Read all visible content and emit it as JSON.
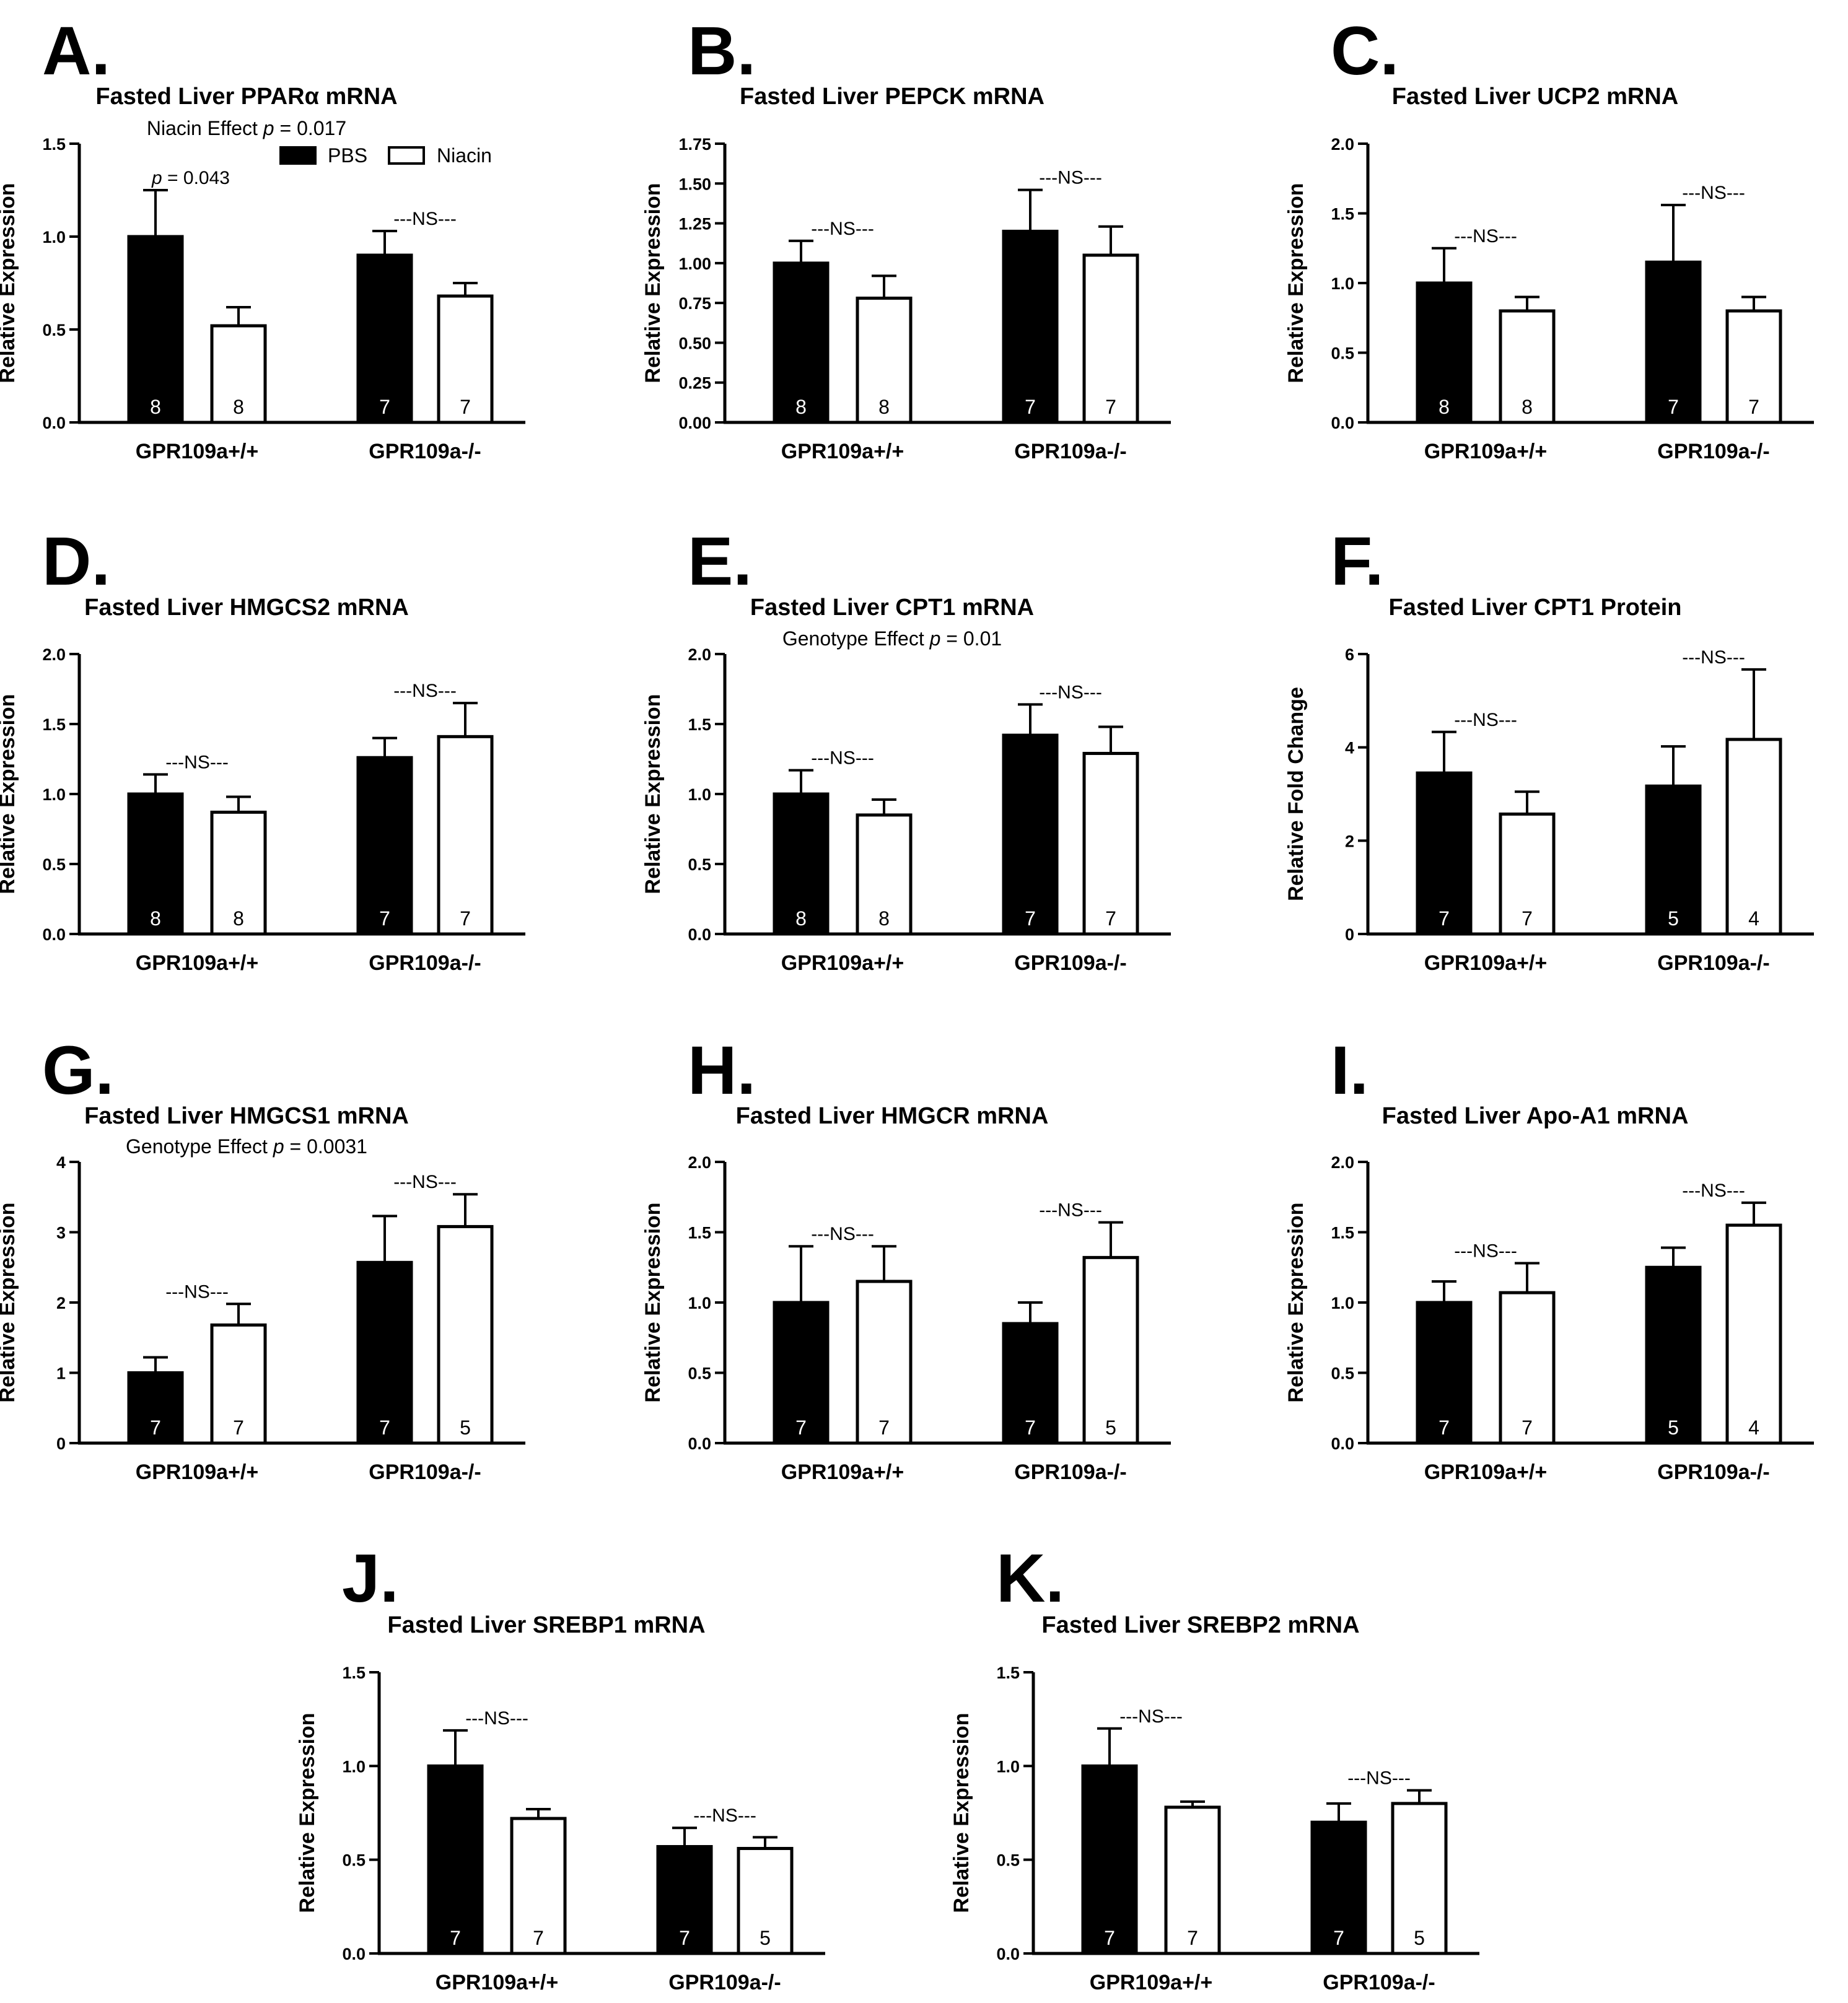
{
  "figure": {
    "legend": {
      "pbs_label": "PBS",
      "niacin_label": "Niacin"
    },
    "colors": {
      "pbs": "#000000",
      "niacin": "#ffffff",
      "axis": "#000000"
    }
  },
  "chart_data": [
    {
      "letter": "A.",
      "type": "bar",
      "title": "Fasted Liver PPARα mRNA",
      "subtitle": "Niacin Effect p = 0.017",
      "ylabel": "Relative Expression",
      "ylim": [
        0,
        1.5
      ],
      "yticks": [
        "0.0",
        "0.5",
        "1.0",
        "1.5"
      ],
      "ytick_values": [
        0,
        0.5,
        1.0,
        1.5
      ],
      "categories": [
        "GPR109a+/+",
        "GPR109a-/-"
      ],
      "series": [
        {
          "name": "PBS",
          "values": [
            1.0,
            0.9
          ],
          "errors": [
            0.25,
            0.13
          ],
          "n": [
            "8",
            "7"
          ]
        },
        {
          "name": "Niacin",
          "values": [
            0.52,
            0.68
          ],
          "errors": [
            0.1,
            0.07
          ],
          "n": [
            "8",
            "7"
          ]
        }
      ],
      "annotations": [
        "p = 0.043",
        "---NS---"
      ],
      "show_legend": true
    },
    {
      "letter": "B.",
      "type": "bar",
      "title": "Fasted Liver PEPCK mRNA",
      "ylabel": "Relative Expression",
      "ylim": [
        0,
        1.75
      ],
      "yticks": [
        "0.00",
        "0.25",
        "0.50",
        "0.75",
        "1.00",
        "1.25",
        "1.50",
        "1.75"
      ],
      "ytick_values": [
        0,
        0.25,
        0.5,
        0.75,
        1.0,
        1.25,
        1.5,
        1.75
      ],
      "categories": [
        "GPR109a+/+",
        "GPR109a-/-"
      ],
      "series": [
        {
          "name": "PBS",
          "values": [
            1.0,
            1.2
          ],
          "errors": [
            0.14,
            0.26
          ],
          "n": [
            "8",
            "7"
          ]
        },
        {
          "name": "Niacin",
          "values": [
            0.78,
            1.05
          ],
          "errors": [
            0.14,
            0.18
          ],
          "n": [
            "8",
            "7"
          ]
        }
      ],
      "annotations": [
        "---NS---",
        "---NS---"
      ]
    },
    {
      "letter": "C.",
      "type": "bar",
      "title": "Fasted Liver UCP2 mRNA",
      "ylabel": "Relative Expression",
      "ylim": [
        0,
        2.0
      ],
      "yticks": [
        "0.0",
        "0.5",
        "1.0",
        "1.5",
        "2.0"
      ],
      "ytick_values": [
        0,
        0.5,
        1.0,
        1.5,
        2.0
      ],
      "categories": [
        "GPR109a+/+",
        "GPR109a-/-"
      ],
      "series": [
        {
          "name": "PBS",
          "values": [
            1.0,
            1.15
          ],
          "errors": [
            0.25,
            0.41
          ],
          "n": [
            "8",
            "7"
          ]
        },
        {
          "name": "Niacin",
          "values": [
            0.8,
            0.8
          ],
          "errors": [
            0.1,
            0.1
          ],
          "n": [
            "8",
            "7"
          ]
        }
      ],
      "annotations": [
        "---NS---",
        "---NS---"
      ]
    },
    {
      "letter": "D.",
      "type": "bar",
      "title": "Fasted Liver HMGCS2 mRNA",
      "ylabel": "Relative Expression",
      "ylim": [
        0,
        2.0
      ],
      "yticks": [
        "0.0",
        "0.5",
        "1.0",
        "1.5",
        "2.0"
      ],
      "ytick_values": [
        0,
        0.5,
        1.0,
        1.5,
        2.0
      ],
      "categories": [
        "GPR109a+/+",
        "GPR109a-/-"
      ],
      "series": [
        {
          "name": "PBS",
          "values": [
            1.0,
            1.26
          ],
          "errors": [
            0.14,
            0.14
          ],
          "n": [
            "8",
            "7"
          ]
        },
        {
          "name": "Niacin",
          "values": [
            0.87,
            1.41
          ],
          "errors": [
            0.11,
            0.24
          ],
          "n": [
            "8",
            "7"
          ]
        }
      ],
      "annotations": [
        "---NS---",
        "---NS---"
      ]
    },
    {
      "letter": "E.",
      "type": "bar",
      "title": "Fasted Liver CPT1 mRNA",
      "subtitle": "Genotype Effect p = 0.01",
      "ylabel": "Relative Expression",
      "ylim": [
        0,
        2.0
      ],
      "yticks": [
        "0.0",
        "0.5",
        "1.0",
        "1.5",
        "2.0"
      ],
      "ytick_values": [
        0,
        0.5,
        1.0,
        1.5,
        2.0
      ],
      "categories": [
        "GPR109a+/+",
        "GPR109a-/-"
      ],
      "series": [
        {
          "name": "PBS",
          "values": [
            1.0,
            1.42
          ],
          "errors": [
            0.17,
            0.22
          ],
          "n": [
            "8",
            "7"
          ]
        },
        {
          "name": "Niacin",
          "values": [
            0.85,
            1.29
          ],
          "errors": [
            0.11,
            0.19
          ],
          "n": [
            "8",
            "7"
          ]
        }
      ],
      "annotations": [
        "---NS---",
        "---NS---"
      ]
    },
    {
      "letter": "F.",
      "type": "bar",
      "title": "Fasted Liver CPT1 Protein",
      "ylabel": "Relative Fold Change",
      "ylim": [
        0,
        6
      ],
      "yticks": [
        "0",
        "2",
        "4",
        "6"
      ],
      "ytick_values": [
        0,
        2,
        4,
        6
      ],
      "categories": [
        "GPR109a+/+",
        "GPR109a-/-"
      ],
      "series": [
        {
          "name": "PBS",
          "values": [
            3.45,
            3.17
          ],
          "errors": [
            0.88,
            0.85
          ],
          "n": [
            "7",
            "5"
          ]
        },
        {
          "name": "Niacin",
          "values": [
            2.57,
            4.17
          ],
          "errors": [
            0.48,
            1.5
          ],
          "n": [
            "7",
            "4"
          ]
        }
      ],
      "annotations": [
        "---NS---",
        "---NS---"
      ]
    },
    {
      "letter": "G.",
      "type": "bar",
      "title": "Fasted Liver HMGCS1 mRNA",
      "subtitle": "Genotype Effect p = 0.0031",
      "ylabel": "Relative Expression",
      "ylim": [
        0,
        4
      ],
      "yticks": [
        "0",
        "1",
        "2",
        "3",
        "4"
      ],
      "ytick_values": [
        0,
        1,
        2,
        3,
        4
      ],
      "categories": [
        "GPR109a+/+",
        "GPR109a-/-"
      ],
      "series": [
        {
          "name": "PBS",
          "values": [
            1.0,
            2.57
          ],
          "errors": [
            0.22,
            0.66
          ],
          "n": [
            "7",
            "7"
          ]
        },
        {
          "name": "Niacin",
          "values": [
            1.68,
            3.08
          ],
          "errors": [
            0.3,
            0.46
          ],
          "n": [
            "7",
            "5"
          ]
        }
      ],
      "annotations": [
        "---NS---",
        "---NS---"
      ]
    },
    {
      "letter": "H.",
      "type": "bar",
      "title": "Fasted Liver HMGCR mRNA",
      "ylabel": "Relative Expression",
      "ylim": [
        0,
        2.0
      ],
      "yticks": [
        "0.0",
        "0.5",
        "1.0",
        "1.5",
        "2.0"
      ],
      "ytick_values": [
        0,
        0.5,
        1.0,
        1.5,
        2.0
      ],
      "categories": [
        "GPR109a+/+",
        "GPR109a-/-"
      ],
      "series": [
        {
          "name": "PBS",
          "values": [
            1.0,
            0.85
          ],
          "errors": [
            0.4,
            0.15
          ],
          "n": [
            "7",
            "7"
          ]
        },
        {
          "name": "Niacin",
          "values": [
            1.15,
            1.32
          ],
          "errors": [
            0.25,
            0.25
          ],
          "n": [
            "7",
            "5"
          ]
        }
      ],
      "annotations": [
        "---NS---",
        "---NS---"
      ]
    },
    {
      "letter": "I.",
      "type": "bar",
      "title": "Fasted Liver Apo-A1 mRNA",
      "ylabel": "Relative Expression",
      "ylim": [
        0,
        2.0
      ],
      "yticks": [
        "0.0",
        "0.5",
        "1.0",
        "1.5",
        "2.0"
      ],
      "ytick_values": [
        0,
        0.5,
        1.0,
        1.5,
        2.0
      ],
      "categories": [
        "GPR109a+/+",
        "GPR109a-/-"
      ],
      "series": [
        {
          "name": "PBS",
          "values": [
            1.0,
            1.25
          ],
          "errors": [
            0.15,
            0.14
          ],
          "n": [
            "7",
            "5"
          ]
        },
        {
          "name": "Niacin",
          "values": [
            1.07,
            1.55
          ],
          "errors": [
            0.21,
            0.16
          ],
          "n": [
            "7",
            "4"
          ]
        }
      ],
      "annotations": [
        "---NS---",
        "---NS---"
      ]
    },
    {
      "letter": "J.",
      "type": "bar",
      "title": "Fasted Liver SREBP1 mRNA",
      "ylabel": "Relative Expression",
      "ylim": [
        0,
        1.5
      ],
      "yticks": [
        "0.0",
        "0.5",
        "1.0",
        "1.5"
      ],
      "ytick_values": [
        0,
        0.5,
        1.0,
        1.5
      ],
      "categories": [
        "GPR109a+/+",
        "GPR109a-/-"
      ],
      "series": [
        {
          "name": "PBS",
          "values": [
            1.0,
            0.57
          ],
          "errors": [
            0.19,
            0.1
          ],
          "n": [
            "7",
            "7"
          ]
        },
        {
          "name": "Niacin",
          "values": [
            0.72,
            0.56
          ],
          "errors": [
            0.05,
            0.06
          ],
          "n": [
            "7",
            "5"
          ]
        }
      ],
      "annotations": [
        "---NS---",
        "---NS---"
      ]
    },
    {
      "letter": "K.",
      "type": "bar",
      "title": "Fasted Liver SREBP2 mRNA",
      "ylabel": "Relative Expression",
      "ylim": [
        0,
        1.5
      ],
      "yticks": [
        "0.0",
        "0.5",
        "1.0",
        "1.5"
      ],
      "ytick_values": [
        0,
        0.5,
        1.0,
        1.5
      ],
      "categories": [
        "GPR109a+/+",
        "GPR109a-/-"
      ],
      "series": [
        {
          "name": "PBS",
          "values": [
            1.0,
            0.7
          ],
          "errors": [
            0.2,
            0.1
          ],
          "n": [
            "7",
            "7"
          ]
        },
        {
          "name": "Niacin",
          "values": [
            0.78,
            0.8
          ],
          "errors": [
            0.03,
            0.07
          ],
          "n": [
            "7",
            "5"
          ]
        }
      ],
      "annotations": [
        "---NS---",
        "---NS---"
      ]
    }
  ]
}
